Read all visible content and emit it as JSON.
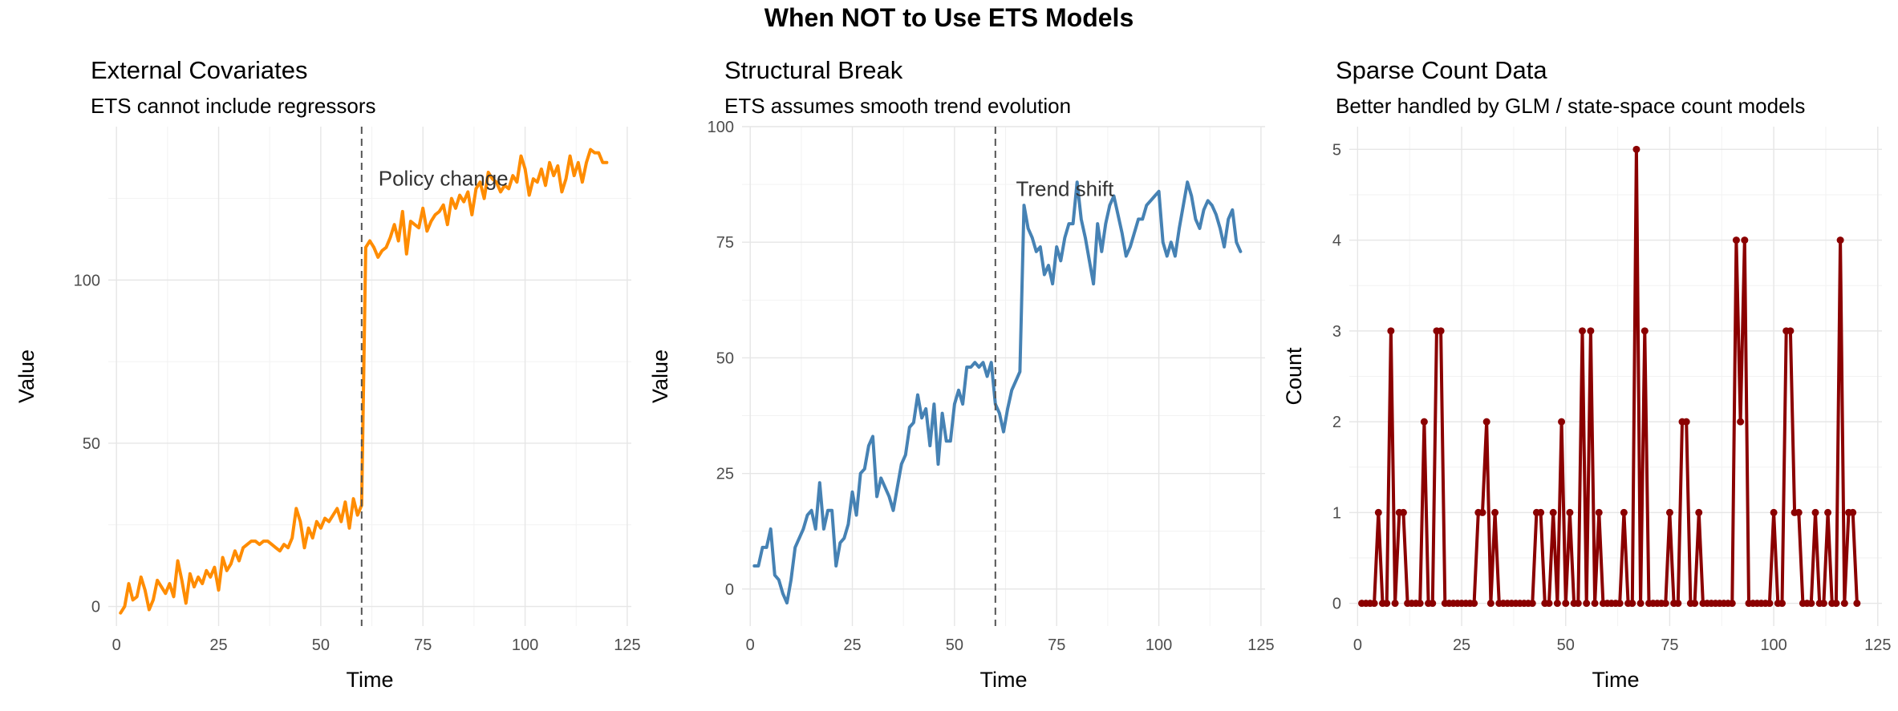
{
  "figure": {
    "title": "When NOT to Use ETS Models"
  },
  "colors": {
    "orange": "#FF8C00",
    "steelblue": "#4682B4",
    "darkred": "#8B0000",
    "vline": "#555555"
  },
  "chart_data": [
    {
      "type": "line",
      "title": "External Covariates",
      "subtitle": "ETS cannot include regressors",
      "xlabel": "Time",
      "ylabel": "Value",
      "xlim": [
        -2,
        126
      ],
      "ylim": [
        -6,
        147
      ],
      "xticks": [
        0,
        25,
        50,
        75,
        100,
        125
      ],
      "yticks": [
        0,
        50,
        100
      ],
      "vline": 60,
      "annotation": {
        "text": "Policy change",
        "x": 80,
        "y": 129
      },
      "series": [
        {
          "color": "#FF8C00",
          "x": [
            1,
            2,
            3,
            4,
            5,
            6,
            7,
            8,
            9,
            10,
            11,
            12,
            13,
            14,
            15,
            16,
            17,
            18,
            19,
            20,
            21,
            22,
            23,
            24,
            25,
            26,
            27,
            28,
            29,
            30,
            31,
            32,
            33,
            34,
            35,
            36,
            37,
            38,
            39,
            40,
            41,
            42,
            43,
            44,
            45,
            46,
            47,
            48,
            49,
            50,
            51,
            52,
            53,
            54,
            55,
            56,
            57,
            58,
            59,
            60,
            61,
            62,
            63,
            64,
            65,
            66,
            67,
            68,
            69,
            70,
            71,
            72,
            73,
            74,
            75,
            76,
            77,
            78,
            79,
            80,
            81,
            82,
            83,
            84,
            85,
            86,
            87,
            88,
            89,
            90,
            91,
            92,
            93,
            94,
            95,
            96,
            97,
            98,
            99,
            100,
            101,
            102,
            103,
            104,
            105,
            106,
            107,
            108,
            109,
            110,
            111,
            112,
            113,
            114,
            115,
            116,
            117,
            118,
            119,
            120
          ],
          "y": [
            -2,
            0,
            7,
            2,
            3,
            9,
            5,
            -1,
            2,
            8,
            6,
            4,
            7,
            3,
            14,
            8,
            1,
            10,
            6,
            9,
            7,
            11,
            9,
            12,
            5,
            15,
            11,
            13,
            17,
            14,
            18,
            19,
            20,
            20,
            19,
            20,
            20,
            19,
            18,
            17,
            19,
            18,
            21,
            30,
            26,
            18,
            24,
            21,
            26,
            24,
            27,
            26,
            28,
            30,
            26,
            32,
            24,
            33,
            28,
            31,
            110,
            112,
            110,
            107,
            109,
            110,
            113,
            117,
            112,
            121,
            108,
            118,
            117,
            116,
            122,
            115,
            118,
            120,
            121,
            123,
            117,
            125,
            122,
            126,
            124,
            127,
            120,
            128,
            130,
            125,
            133,
            131,
            130,
            127,
            129,
            128,
            132,
            130,
            138,
            134,
            126,
            131,
            130,
            134,
            129,
            136,
            132,
            135,
            127,
            131,
            138,
            132,
            136,
            130,
            136,
            140,
            139,
            139,
            136,
            136
          ]
        }
      ]
    },
    {
      "type": "line",
      "title": "Structural Break",
      "subtitle": "ETS assumes smooth trend evolution",
      "xlabel": "Time",
      "ylabel": "Value",
      "xlim": [
        -2,
        126
      ],
      "ylim": [
        -8,
        100
      ],
      "xticks": [
        0,
        25,
        50,
        75,
        100,
        125
      ],
      "yticks": [
        0,
        25,
        50,
        75,
        100
      ],
      "vline": 60,
      "annotation": {
        "text": "Trend shift",
        "x": 77,
        "y": 85
      },
      "series": [
        {
          "color": "#4682B4",
          "x": [
            1,
            2,
            3,
            4,
            5,
            6,
            7,
            8,
            9,
            10,
            11,
            12,
            13,
            14,
            15,
            16,
            17,
            18,
            19,
            20,
            21,
            22,
            23,
            24,
            25,
            26,
            27,
            28,
            29,
            30,
            31,
            32,
            33,
            34,
            35,
            36,
            37,
            38,
            39,
            40,
            41,
            42,
            43,
            44,
            45,
            46,
            47,
            48,
            49,
            50,
            51,
            52,
            53,
            54,
            55,
            56,
            57,
            58,
            59,
            60,
            61,
            62,
            63,
            64,
            65,
            66,
            67,
            68,
            69,
            70,
            71,
            72,
            73,
            74,
            75,
            76,
            77,
            78,
            79,
            80,
            81,
            82,
            83,
            84,
            85,
            86,
            87,
            88,
            89,
            90,
            91,
            92,
            93,
            94,
            95,
            96,
            97,
            98,
            99,
            100,
            101,
            102,
            103,
            104,
            105,
            106,
            107,
            108,
            109,
            110,
            111,
            112,
            113,
            114,
            115,
            116,
            117,
            118,
            119,
            120
          ],
          "y": [
            5,
            5,
            9,
            9,
            13,
            3,
            2,
            -1,
            -3,
            2,
            9,
            11,
            13,
            16,
            17,
            13,
            23,
            13,
            17,
            17,
            5,
            10,
            11,
            14,
            21,
            16,
            25,
            26,
            31,
            33,
            20,
            24,
            22,
            20,
            17,
            22,
            27,
            29,
            35,
            36,
            42,
            37,
            39,
            31,
            40,
            27,
            38,
            32,
            32,
            40,
            43,
            40,
            48,
            48,
            49,
            48,
            49,
            46,
            49,
            40,
            38,
            34,
            39,
            43,
            45,
            47,
            83,
            78,
            76,
            73,
            74,
            68,
            70,
            66,
            74,
            71,
            76,
            79,
            79,
            88,
            80,
            76,
            71,
            66,
            79,
            73,
            79,
            83,
            85,
            81,
            77,
            72,
            74,
            77,
            80,
            80,
            83,
            84,
            85,
            86,
            75,
            72,
            75,
            72,
            78,
            83,
            88,
            85,
            80,
            78,
            82,
            84,
            83,
            81,
            78,
            74,
            80,
            82,
            75,
            73
          ]
        }
      ]
    },
    {
      "type": "line",
      "title": "Sparse Count Data",
      "subtitle": "Better handled by GLM / state-space count models",
      "xlabel": "Time",
      "ylabel": "Count",
      "xlim": [
        -2,
        126
      ],
      "ylim": [
        -0.25,
        5.25
      ],
      "xticks": [
        0,
        25,
        50,
        75,
        100,
        125
      ],
      "yticks": [
        0,
        1,
        2,
        3,
        4,
        5
      ],
      "series": [
        {
          "color": "#8B0000",
          "x": [
            1,
            2,
            3,
            4,
            5,
            6,
            7,
            8,
            9,
            10,
            11,
            12,
            13,
            14,
            15,
            16,
            17,
            18,
            19,
            20,
            21,
            22,
            23,
            24,
            25,
            26,
            27,
            28,
            29,
            30,
            31,
            32,
            33,
            34,
            35,
            36,
            37,
            38,
            39,
            40,
            41,
            42,
            43,
            44,
            45,
            46,
            47,
            48,
            49,
            50,
            51,
            52,
            53,
            54,
            55,
            56,
            57,
            58,
            59,
            60,
            61,
            62,
            63,
            64,
            65,
            66,
            67,
            68,
            69,
            70,
            71,
            72,
            73,
            74,
            75,
            76,
            77,
            78,
            79,
            80,
            81,
            82,
            83,
            84,
            85,
            86,
            87,
            88,
            89,
            90,
            91,
            92,
            93,
            94,
            95,
            96,
            97,
            98,
            99,
            100,
            101,
            102,
            103,
            104,
            105,
            106,
            107,
            108,
            109,
            110,
            111,
            112,
            113,
            114,
            115,
            116,
            117,
            118,
            119,
            120
          ],
          "y": [
            0,
            0,
            0,
            0,
            1,
            0,
            0,
            3,
            0,
            1,
            1,
            0,
            0,
            0,
            0,
            2,
            0,
            0,
            3,
            3,
            0,
            0,
            0,
            0,
            0,
            0,
            0,
            0,
            1,
            1,
            2,
            0,
            1,
            0,
            0,
            0,
            0,
            0,
            0,
            0,
            0,
            0,
            1,
            1,
            0,
            0,
            1,
            0,
            2,
            0,
            1,
            0,
            0,
            3,
            0,
            3,
            0,
            1,
            0,
            0,
            0,
            0,
            0,
            1,
            0,
            0,
            5,
            0,
            3,
            0,
            0,
            0,
            0,
            0,
            1,
            0,
            0,
            2,
            2,
            0,
            0,
            1,
            0,
            0,
            0,
            0,
            0,
            0,
            0,
            0,
            4,
            2,
            4,
            0,
            0,
            0,
            0,
            0,
            0,
            1,
            0,
            0,
            3,
            3,
            1,
            1,
            0,
            0,
            0,
            1,
            0,
            0,
            1,
            0,
            0,
            4,
            0,
            1,
            1,
            0
          ]
        }
      ]
    }
  ]
}
